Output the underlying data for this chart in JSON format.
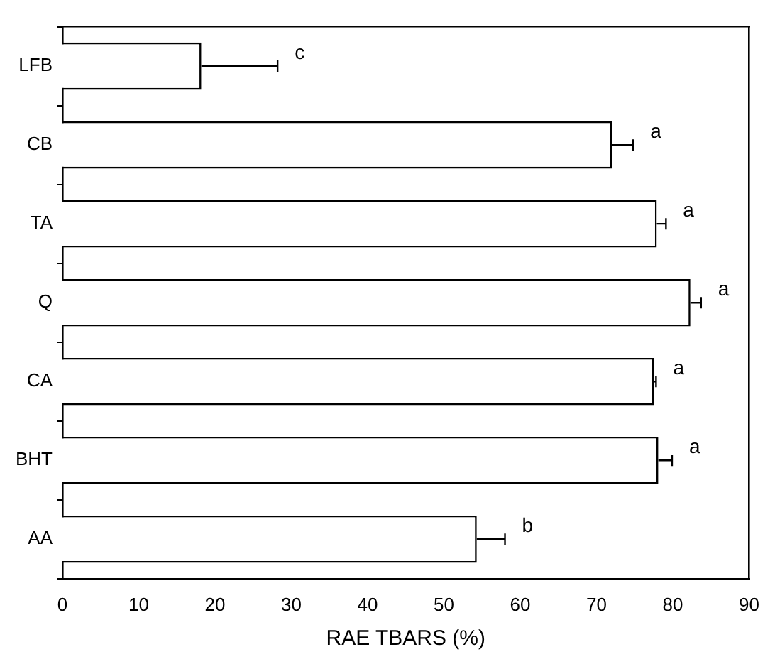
{
  "chart_data": {
    "type": "bar",
    "orientation": "horizontal",
    "xlabel": "RAE TBARS (%)",
    "categories": [
      "LFB",
      "CB",
      "TA",
      "Q",
      "CA",
      "BHT",
      "AA"
    ],
    "values": [
      18.2,
      72,
      77.9,
      82.3,
      77.5,
      78.1,
      54.3
    ],
    "errors": [
      10,
      2.8,
      1.2,
      1.4,
      0.3,
      1.8,
      3.7
    ],
    "color": "#ffffff",
    "xlim": [
      0,
      90
    ],
    "xticks": [
      0,
      10,
      20,
      30,
      40,
      50,
      60,
      70,
      80,
      90
    ],
    "grid": false,
    "legend": false,
    "annotations": [
      "c",
      "a",
      "a",
      "a",
      "a",
      "a",
      "b"
    ]
  }
}
